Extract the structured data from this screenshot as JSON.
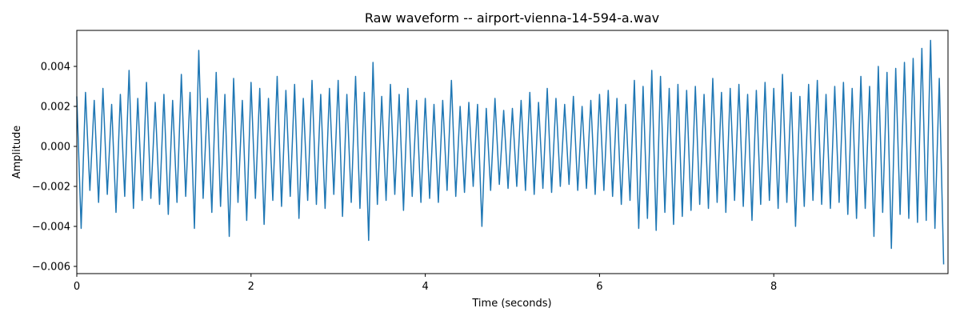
{
  "chart_data": {
    "type": "line",
    "title": "Raw waveform -- airport-vienna-14-594-a.wav",
    "x_label": "Time (seconds)",
    "y_label": "Amplitude",
    "color": "#1f77b4",
    "xlim": [
      0,
      10
    ],
    "ylim": [
      -0.00636,
      0.0058
    ],
    "xticks": [
      0,
      2,
      4,
      6,
      8
    ],
    "yticks": [
      {
        "value": -0.006,
        "label": "−0.006"
      },
      {
        "value": -0.004,
        "label": "−0.004"
      },
      {
        "value": -0.002,
        "label": "−0.002"
      },
      {
        "value": 0,
        "label": "0.000"
      },
      {
        "value": 0.002,
        "label": "0.002"
      },
      {
        "value": 0.004,
        "label": "0.004"
      }
    ],
    "x": [
      0,
      0.05,
      0.1,
      0.15,
      0.2,
      0.25,
      0.3,
      0.35,
      0.4,
      0.45,
      0.5,
      0.55,
      0.6,
      0.65,
      0.7,
      0.75,
      0.8,
      0.85,
      0.9,
      0.95,
      1,
      1.05,
      1.1,
      1.15,
      1.2,
      1.25,
      1.3,
      1.35,
      1.4,
      1.45,
      1.5,
      1.55,
      1.6,
      1.65,
      1.7,
      1.75,
      1.8,
      1.85,
      1.9,
      1.95,
      2,
      2.05,
      2.1,
      2.15,
      2.2,
      2.25,
      2.3,
      2.35,
      2.4,
      2.45,
      2.5,
      2.55,
      2.6,
      2.65,
      2.7,
      2.75,
      2.8,
      2.85,
      2.9,
      2.95,
      3,
      3.05,
      3.1,
      3.15,
      3.2,
      3.25,
      3.3,
      3.35,
      3.4,
      3.45,
      3.5,
      3.55,
      3.6,
      3.65,
      3.7,
      3.75,
      3.8,
      3.85,
      3.9,
      3.95,
      4,
      4.05,
      4.1,
      4.15,
      4.2,
      4.25,
      4.3,
      4.35,
      4.4,
      4.45,
      4.5,
      4.55,
      4.6,
      4.65,
      4.7,
      4.75,
      4.8,
      4.85,
      4.9,
      4.95,
      5,
      5.05,
      5.1,
      5.15,
      5.2,
      5.25,
      5.3,
      5.35,
      5.4,
      5.45,
      5.5,
      5.55,
      5.6,
      5.65,
      5.7,
      5.75,
      5.8,
      5.85,
      5.9,
      5.95,
      6,
      6.05,
      6.1,
      6.15,
      6.2,
      6.25,
      6.3,
      6.35,
      6.4,
      6.45,
      6.5,
      6.55,
      6.6,
      6.65,
      6.7,
      6.75,
      6.8,
      6.85,
      6.9,
      6.95,
      7,
      7.05,
      7.1,
      7.15,
      7.2,
      7.25,
      7.3,
      7.35,
      7.4,
      7.45,
      7.5,
      7.55,
      7.6,
      7.65,
      7.7,
      7.75,
      7.8,
      7.85,
      7.9,
      7.95,
      8,
      8.05,
      8.1,
      8.15,
      8.2,
      8.25,
      8.3,
      8.35,
      8.4,
      8.45,
      8.5,
      8.55,
      8.6,
      8.65,
      8.7,
      8.75,
      8.8,
      8.85,
      8.9,
      8.95,
      9,
      9.05,
      9.1,
      9.15,
      9.2,
      9.25,
      9.3,
      9.35,
      9.4,
      9.45,
      9.5,
      9.55,
      9.6,
      9.65,
      9.7,
      9.75,
      9.8,
      9.85,
      9.9,
      9.95
    ],
    "values": [
      0.0025,
      -0.0041,
      0.0027,
      -0.0022,
      0.0023,
      -0.0028,
      0.0029,
      -0.0024,
      0.0021,
      -0.0033,
      0.0026,
      -0.0025,
      0.0038,
      -0.0031,
      0.0024,
      -0.0027,
      0.0032,
      -0.0026,
      0.0022,
      -0.0029,
      0.0026,
      -0.0034,
      0.0023,
      -0.0028,
      0.0036,
      -0.0025,
      0.0027,
      -0.0041,
      0.0048,
      -0.0026,
      0.0024,
      -0.0033,
      0.0037,
      -0.003,
      0.0026,
      -0.0045,
      0.0034,
      -0.0028,
      0.0023,
      -0.0037,
      0.0032,
      -0.0026,
      0.0029,
      -0.0039,
      0.0024,
      -0.0027,
      0.0035,
      -0.003,
      0.0028,
      -0.0025,
      0.0031,
      -0.0036,
      0.0024,
      -0.0027,
      0.0033,
      -0.0029,
      0.0026,
      -0.0031,
      0.0029,
      -0.0024,
      0.0033,
      -0.0035,
      0.0026,
      -0.0028,
      0.0035,
      -0.0031,
      0.0027,
      -0.0047,
      0.0042,
      -0.0029,
      0.0025,
      -0.0027,
      0.0031,
      -0.0024,
      0.0026,
      -0.0032,
      0.0029,
      -0.0025,
      0.0023,
      -0.0028,
      0.0024,
      -0.0026,
      0.0021,
      -0.0028,
      0.0023,
      -0.0022,
      0.0033,
      -0.0025,
      0.002,
      -0.0023,
      0.0022,
      -0.002,
      0.0021,
      -0.004,
      0.0019,
      -0.0022,
      0.0024,
      -0.0019,
      0.0018,
      -0.0021,
      0.0019,
      -0.002,
      0.0023,
      -0.0022,
      0.0027,
      -0.0024,
      0.0022,
      -0.0021,
      0.0029,
      -0.0023,
      0.0024,
      -0.002,
      0.0021,
      -0.0019,
      0.0025,
      -0.0022,
      0.002,
      -0.0021,
      0.0023,
      -0.0024,
      0.0026,
      -0.0022,
      0.0028,
      -0.0025,
      0.0024,
      -0.0029,
      0.0021,
      -0.0027,
      0.0033,
      -0.0041,
      0.003,
      -0.0036,
      0.0038,
      -0.0042,
      0.0035,
      -0.0033,
      0.0029,
      -0.0039,
      0.0031,
      -0.0035,
      0.0028,
      -0.0032,
      0.003,
      -0.0029,
      0.0026,
      -0.0031,
      0.0034,
      -0.0028,
      0.0027,
      -0.0033,
      0.0029,
      -0.0027,
      0.0031,
      -0.003,
      0.0026,
      -0.0037,
      0.0028,
      -0.0029,
      0.0032,
      -0.0027,
      0.0029,
      -0.0031,
      0.0036,
      -0.0028,
      0.0027,
      -0.004,
      0.0025,
      -0.003,
      0.0031,
      -0.0027,
      0.0033,
      -0.0029,
      0.0026,
      -0.0031,
      0.003,
      -0.0028,
      0.0032,
      -0.0034,
      0.0029,
      -0.0036,
      0.0035,
      -0.0031,
      0.003,
      -0.0045,
      0.004,
      -0.0033,
      0.0037,
      -0.0051,
      0.0039,
      -0.0034,
      0.0042,
      -0.0036,
      0.0044,
      -0.0038,
      0.0049,
      -0.0037,
      0.0053,
      -0.0041,
      0.0034,
      -0.0059
    ]
  }
}
